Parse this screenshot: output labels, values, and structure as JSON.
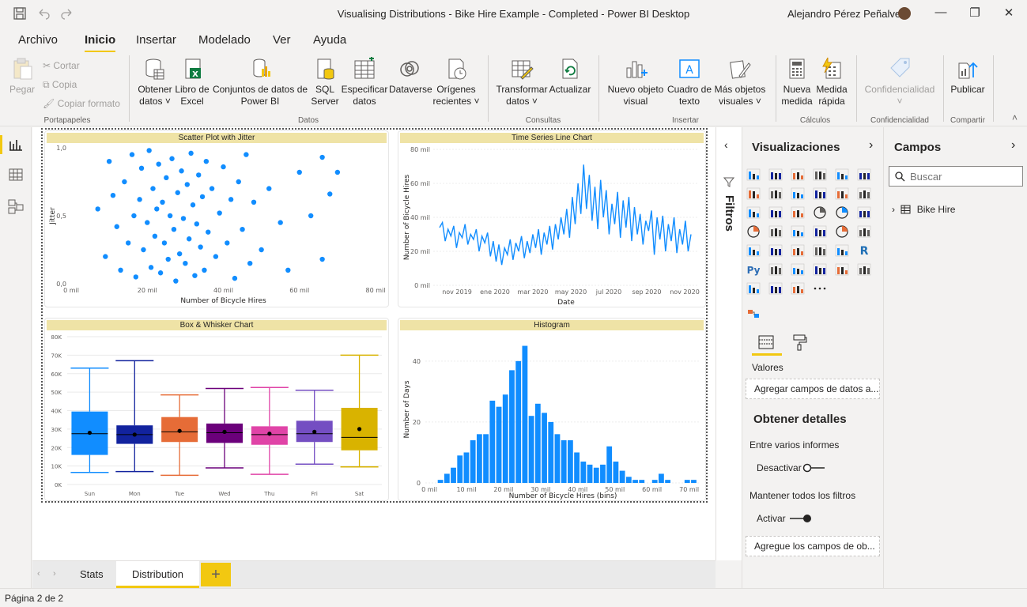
{
  "window": {
    "title": "Visualising Distributions - Bike Hire Example - Completed - Power BI Desktop",
    "user": "Alejandro Pérez Peñalver"
  },
  "menu_tabs": [
    "Archivo",
    "Inicio",
    "Insertar",
    "Modelado",
    "Ver",
    "Ayuda"
  ],
  "ribbon": {
    "clipboard": {
      "paste": "Pegar",
      "cut": "Cortar",
      "copy": "Copia",
      "format_painter": "Copiar formato",
      "group": "Portapapeles"
    },
    "data": {
      "get_data": [
        "Obtener",
        "datos ˅"
      ],
      "excel": [
        "Libro de",
        "Excel"
      ],
      "datasets": [
        "Conjuntos de datos de",
        "Power BI"
      ],
      "sql": [
        "SQL",
        "Server"
      ],
      "enter_data": [
        "Especificar",
        "datos"
      ],
      "dataverse": [
        "Dataverse"
      ],
      "recent_sources": [
        "Orígenes",
        "recientes ˅"
      ],
      "group": "Datos"
    },
    "queries": {
      "transform": [
        "Transformar",
        "datos ˅"
      ],
      "refresh": [
        "Actualizar"
      ],
      "group": "Consultas"
    },
    "insert": {
      "new_visual": [
        "Nuevo objeto",
        "visual"
      ],
      "text_box": [
        "Cuadro de",
        "texto"
      ],
      "more_visuals": [
        "Más objetos",
        "visuales ˅"
      ],
      "group": "Insertar"
    },
    "calculations": {
      "new_measure": [
        "Nueva",
        "medida"
      ],
      "quick_measure": [
        "Medida",
        "rápida"
      ],
      "group": "Cálculos"
    },
    "sensitivity": {
      "label": [
        "Confidencialidad",
        "˅"
      ],
      "group": "Confidencialidad"
    },
    "share": {
      "publish": [
        "Publicar"
      ],
      "group": "Compartir"
    }
  },
  "visuals": {
    "scatter": {
      "title": "Scatter Plot with Jitter",
      "xlabel": "Number of Bicycle Hires",
      "ylabel": "Jitter"
    },
    "timeseries": {
      "title": "Time Series Line Chart",
      "xlabel": "Date",
      "ylabel": "Number of Bicycle Hires"
    },
    "boxplot": {
      "title": "Box & Whisker Chart"
    },
    "histogram": {
      "title": "Histogram",
      "xlabel": "Number of Bicycle Hires (bins)",
      "ylabel": "Number of Days"
    }
  },
  "chart_data": [
    {
      "type": "scatter",
      "title": "Scatter Plot with Jitter",
      "xlabel": "Number of Bicycle Hires",
      "ylabel": "Jitter",
      "xlim": [
        0,
        80000
      ],
      "ylim": [
        0,
        1
      ],
      "x_ticks": [
        "0 mil",
        "20 mil",
        "40 mil",
        "60 mil",
        "80 mil"
      ],
      "y_ticks": [
        "0,0",
        "0,5",
        "1,0"
      ],
      "points": [
        [
          7000,
          0.55
        ],
        [
          9000,
          0.2
        ],
        [
          10000,
          0.9
        ],
        [
          11000,
          0.65
        ],
        [
          12000,
          0.42
        ],
        [
          13000,
          0.1
        ],
        [
          14000,
          0.75
        ],
        [
          15000,
          0.3
        ],
        [
          16000,
          0.95
        ],
        [
          16500,
          0.5
        ],
        [
          17000,
          0.05
        ],
        [
          18000,
          0.62
        ],
        [
          18500,
          0.85
        ],
        [
          19000,
          0.25
        ],
        [
          20000,
          0.45
        ],
        [
          20500,
          0.98
        ],
        [
          21000,
          0.12
        ],
        [
          21500,
          0.7
        ],
        [
          22000,
          0.35
        ],
        [
          22500,
          0.55
        ],
        [
          23000,
          0.88
        ],
        [
          23500,
          0.08
        ],
        [
          24000,
          0.6
        ],
        [
          24500,
          0.3
        ],
        [
          25000,
          0.78
        ],
        [
          25500,
          0.18
        ],
        [
          26000,
          0.5
        ],
        [
          26500,
          0.92
        ],
        [
          27000,
          0.4
        ],
        [
          27500,
          0.02
        ],
        [
          28000,
          0.67
        ],
        [
          28500,
          0.22
        ],
        [
          29000,
          0.83
        ],
        [
          29500,
          0.48
        ],
        [
          30000,
          0.15
        ],
        [
          30500,
          0.73
        ],
        [
          31000,
          0.33
        ],
        [
          31500,
          0.96
        ],
        [
          32000,
          0.58
        ],
        [
          32500,
          0.06
        ],
        [
          33000,
          0.44
        ],
        [
          33500,
          0.8
        ],
        [
          34000,
          0.27
        ],
        [
          34500,
          0.64
        ],
        [
          35000,
          0.1
        ],
        [
          35500,
          0.9
        ],
        [
          36000,
          0.38
        ],
        [
          37000,
          0.7
        ],
        [
          38000,
          0.2
        ],
        [
          39000,
          0.52
        ],
        [
          40000,
          0.86
        ],
        [
          41000,
          0.3
        ],
        [
          42000,
          0.62
        ],
        [
          43000,
          0.04
        ],
        [
          44000,
          0.75
        ],
        [
          45000,
          0.4
        ],
        [
          46000,
          0.95
        ],
        [
          47000,
          0.15
        ],
        [
          48000,
          0.6
        ],
        [
          50000,
          0.25
        ],
        [
          52000,
          0.7
        ],
        [
          55000,
          0.45
        ],
        [
          57000,
          0.1
        ],
        [
          60000,
          0.82
        ],
        [
          63000,
          0.5
        ],
        [
          66000,
          0.18
        ],
        [
          66000,
          0.93
        ],
        [
          68000,
          0.66
        ],
        [
          70000,
          0.82
        ]
      ]
    },
    {
      "type": "line",
      "title": "Time Series Line Chart",
      "xlabel": "Date",
      "ylabel": "Number of Bicycle Hires",
      "ylim": [
        0,
        80000
      ],
      "y_ticks": [
        "0 mil",
        "20 mil",
        "40 mil",
        "60 mil",
        "80 mil"
      ],
      "x_ticks": [
        "nov 2019",
        "ene 2020",
        "mar 2020",
        "may 2020",
        "jul 2020",
        "sep 2020",
        "nov 2020"
      ],
      "values": [
        34000,
        37000,
        26000,
        33000,
        29000,
        35000,
        22000,
        31000,
        28000,
        36000,
        24000,
        30000,
        27000,
        33000,
        20000,
        29000,
        25000,
        31000,
        17000,
        26000,
        14000,
        24000,
        12000,
        22000,
        18000,
        27000,
        15000,
        25000,
        20000,
        29000,
        16000,
        26000,
        19000,
        30000,
        22000,
        33000,
        18000,
        31000,
        24000,
        35000,
        21000,
        36000,
        27000,
        40000,
        30000,
        45000,
        28000,
        52000,
        36000,
        60000,
        42000,
        71000,
        45000,
        65000,
        38000,
        58000,
        33000,
        62000,
        40000,
        56000,
        30000,
        48000,
        36000,
        55000,
        28000,
        50000,
        34000,
        52000,
        26000,
        46000,
        30000,
        42000,
        24000,
        38000,
        32000,
        44000,
        18000,
        40000,
        27000,
        41000,
        20000,
        36000,
        26000,
        40000,
        19000,
        33000,
        24000,
        38000,
        20000,
        30000
      ]
    },
    {
      "type": "bar",
      "subtype": "box",
      "title": "Box & Whisker Chart",
      "ylim": [
        0,
        80000
      ],
      "y_ticks": [
        "0K",
        "10K",
        "20K",
        "30K",
        "40K",
        "50K",
        "60K",
        "70K",
        "80K"
      ],
      "categories": [
        "Sun",
        "Mon",
        "Tue",
        "Wed",
        "Thu",
        "Fri",
        "Sat"
      ],
      "series": [
        {
          "name": "Sun",
          "color": "#118dff",
          "min": 6500,
          "q1": 16000,
          "median": 27500,
          "q3": 39500,
          "max": 63000,
          "mean": 28000
        },
        {
          "name": "Mon",
          "color": "#12239e",
          "min": 7000,
          "q1": 22000,
          "median": 27000,
          "q3": 32000,
          "max": 67000,
          "mean": 27000
        },
        {
          "name": "Tue",
          "color": "#e66c37",
          "min": 5000,
          "q1": 23000,
          "median": 28500,
          "q3": 36500,
          "max": 48500,
          "mean": 29000
        },
        {
          "name": "Wed",
          "color": "#6b007b",
          "min": 9000,
          "q1": 22500,
          "median": 28000,
          "q3": 33000,
          "max": 52000,
          "mean": 28500
        },
        {
          "name": "Thu",
          "color": "#e044a7",
          "min": 5500,
          "q1": 21500,
          "median": 27000,
          "q3": 31500,
          "max": 52500,
          "mean": 27500
        },
        {
          "name": "Fri",
          "color": "#744ec2",
          "min": 11000,
          "q1": 23000,
          "median": 27500,
          "q3": 34500,
          "max": 51000,
          "mean": 28500
        },
        {
          "name": "Sat",
          "color": "#d9b300",
          "min": 9500,
          "q1": 18500,
          "median": 25500,
          "q3": 41500,
          "max": 70000,
          "mean": 30000
        }
      ]
    },
    {
      "type": "bar",
      "title": "Histogram",
      "xlabel": "Number of Bicycle Hires (bins)",
      "ylabel": "Number of Days",
      "ylim": [
        0,
        48
      ],
      "y_ticks": [
        "0",
        "20",
        "40"
      ],
      "x_ticks": [
        "0 mil",
        "10 mil",
        "20 mil",
        "30 mil",
        "40 mil",
        "50 mil",
        "60 mil",
        "70 mil"
      ],
      "bin_width": 1750,
      "categories": [
        3000,
        4750,
        6500,
        8250,
        10000,
        11750,
        13500,
        15250,
        17000,
        18750,
        20500,
        22250,
        24000,
        25750,
        27500,
        29250,
        31000,
        32750,
        34500,
        36250,
        38000,
        39750,
        41500,
        43250,
        45000,
        46750,
        48500,
        50250,
        52000,
        53750,
        55500,
        57250,
        59000,
        60750,
        62500,
        64250,
        66000,
        67750,
        69500,
        71250
      ],
      "values": [
        1,
        3,
        5,
        9,
        10,
        14,
        16,
        16,
        27,
        25,
        29,
        37,
        40,
        45,
        22,
        26,
        23,
        20,
        16,
        14,
        14,
        10,
        7,
        6,
        5,
        6,
        12,
        7,
        4,
        2,
        1,
        1,
        0,
        1,
        3,
        1,
        0,
        0,
        1,
        1
      ]
    }
  ],
  "filters_pane": {
    "label": "Filtros"
  },
  "visualizations_pane": {
    "title": "Visualizaciones",
    "wells_label": "Valores",
    "wells_placeholder": "Agregar campos de datos a...",
    "drill_title": "Obtener detalles",
    "cross_report_label": "Entre varios informes",
    "cross_report_toggle": "Desactivar",
    "keep_filters_label": "Mantener todos los filtros",
    "keep_filters_toggle": "Activar",
    "drill_placeholder": "Agregue los campos de ob..."
  },
  "fields_pane": {
    "title": "Campos",
    "search_placeholder": "Buscar",
    "tables": [
      "Bike Hire"
    ]
  },
  "page_tabs": [
    "Stats",
    "Distribution"
  ],
  "status_bar": {
    "page_indicator": "Página 2 de 2"
  },
  "colors": {
    "accent": "#f2c811",
    "data_blue": "#118dff",
    "title_bar_fill": "#efe3a6"
  }
}
